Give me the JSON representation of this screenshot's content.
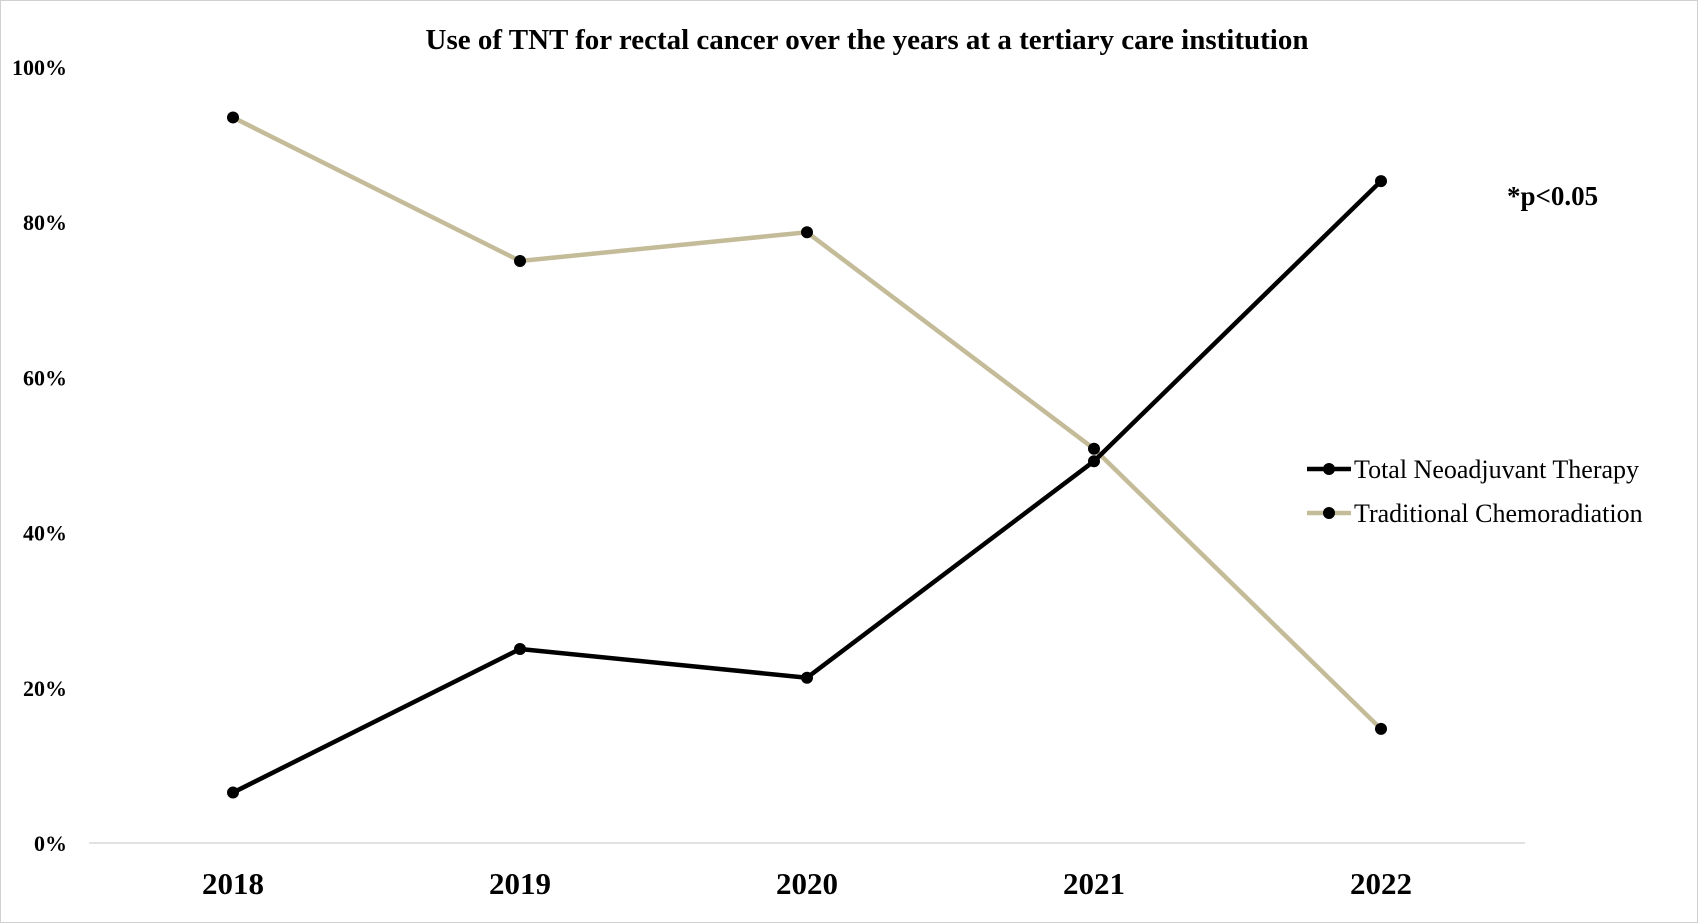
{
  "chart_data": {
    "type": "line",
    "title": "Use of TNT for rectal cancer over the years at a tertiary care institution",
    "xlabel": "",
    "ylabel": "",
    "categories": [
      "2018",
      "2019",
      "2020",
      "2021",
      "2022"
    ],
    "ylim": [
      0,
      100
    ],
    "y_ticks": [
      "0%",
      "20%",
      "40%",
      "60%",
      "80%",
      "100%"
    ],
    "y_tick_values": [
      0,
      20,
      40,
      60,
      80,
      100
    ],
    "grid": false,
    "legend_position": "right",
    "series": [
      {
        "name": "Total Neoadjuvant Therapy",
        "values": [
          6.5,
          25,
          21.3,
          49.2,
          85.3
        ],
        "color": "#000000"
      },
      {
        "name": "Traditional Chemoradiation",
        "values": [
          93.5,
          75,
          78.7,
          50.8,
          14.7
        ],
        "color": "#c4bb98"
      }
    ],
    "annotations": [
      "*p<0.05"
    ]
  }
}
